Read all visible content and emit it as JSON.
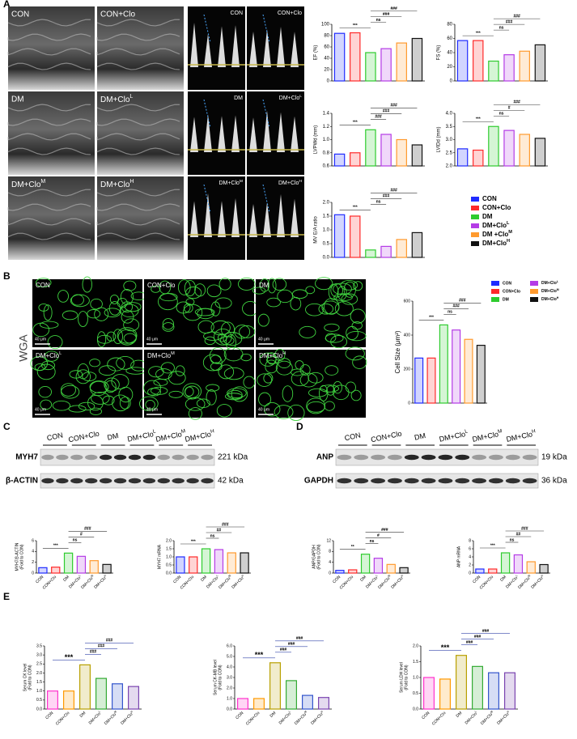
{
  "chart_data": [
    {
      "type": "bar",
      "ylabel": "EF (%)",
      "values": [
        84,
        85,
        50,
        57,
        67,
        75
      ],
      "colors": [
        "#1f2bff",
        "#ff2a2a",
        "#2ecc2e",
        "#b43be6",
        "#ff9a2e",
        "#111111"
      ],
      "ylim": [
        0,
        100
      ],
      "yticks": [
        0,
        20,
        40,
        60,
        80,
        100
      ],
      "annotations": [
        "***",
        "ns",
        "###",
        "###"
      ]
    },
    {
      "type": "bar",
      "ylabel": "FS (%)",
      "values": [
        57,
        57,
        28,
        37,
        42,
        51
      ],
      "colors": [
        "#1f2bff",
        "#ff2a2a",
        "#2ecc2e",
        "#b43be6",
        "#ff9a2e",
        "#111111"
      ],
      "ylim": [
        0,
        80
      ],
      "yticks": [
        0,
        20,
        40,
        60,
        80
      ],
      "annotations": [
        "***",
        "ns",
        "###",
        "###"
      ]
    },
    {
      "type": "bar",
      "ylabel": "LVPWd (mm)",
      "values": [
        0.78,
        0.8,
        1.15,
        1.08,
        1.0,
        0.92
      ],
      "colors": [
        "#1f2bff",
        "#ff2a2a",
        "#2ecc2e",
        "#b43be6",
        "#ff9a2e",
        "#111111"
      ],
      "ylim": [
        0.6,
        1.4
      ],
      "yticks": [
        0.6,
        0.8,
        {
          "value": 1,
          "label": "1.0"
        },
        1.2,
        1.4
      ],
      "annotations": [
        "***",
        "###",
        "###",
        "###"
      ]
    },
    {
      "type": "bar",
      "ylabel": "LVIDd (mm)",
      "values": [
        2.65,
        2.6,
        3.5,
        3.35,
        3.2,
        3.05
      ],
      "colors": [
        "#1f2bff",
        "#ff2a2a",
        "#2ecc2e",
        "#b43be6",
        "#ff9a2e",
        "#111111"
      ],
      "ylim": [
        2,
        4
      ],
      "yticks": [
        {
          "value": 2,
          "label": "2.0"
        },
        2.5,
        {
          "value": 3,
          "label": "3.0"
        },
        3.5,
        {
          "value": 4,
          "label": "4.0"
        }
      ],
      "annotations": [
        "***",
        "ns",
        "#",
        "###"
      ]
    },
    {
      "type": "bar",
      "ylabel": "MV E/A ratio",
      "values": [
        1.55,
        1.5,
        0.27,
        0.4,
        0.65,
        0.9
      ],
      "colors": [
        "#1f2bff",
        "#ff2a2a",
        "#2ecc2e",
        "#b43be6",
        "#ff9a2e",
        "#111111"
      ],
      "ylim": [
        0,
        2
      ],
      "yticks": [
        {
          "value": 0,
          "label": "0.0"
        },
        0.5,
        {
          "value": 1,
          "label": "1.0"
        },
        1.5,
        {
          "value": 2,
          "label": "2.0"
        }
      ],
      "annotations": [
        "***",
        "ns",
        "###",
        "###"
      ]
    },
    {
      "type": "bar",
      "ylabel": "Cell Size (μm²)",
      "values": [
        265,
        265,
        460,
        430,
        375,
        340
      ],
      "colors": [
        "#1f2bff",
        "#ff2a2a",
        "#2ecc2e",
        "#b43be6",
        "#ff9a2e",
        "#111111"
      ],
      "ylim": [
        0,
        600
      ],
      "yticks": [
        0,
        200,
        400,
        600
      ],
      "annotations": [
        "***",
        "ns",
        "###",
        "###"
      ]
    },
    {
      "type": "bar",
      "ylabel": [
        "MYH7/β-ACTIN",
        "(Fold to CON)"
      ],
      "categories": [
        "CON",
        "CON+Clo",
        "DM",
        {
          "text": "DM+Clo",
          "sup": "L"
        },
        {
          "text": "DM+Clo",
          "sup": "M"
        },
        {
          "text": "DM+Clo",
          "sup": "H"
        }
      ],
      "values": [
        1.0,
        1.1,
        3.7,
        3.1,
        2.3,
        1.6
      ],
      "colors": [
        "#1f2bff",
        "#ff2a2a",
        "#2ecc2e",
        "#b43be6",
        "#ff9a2e",
        "#111111"
      ],
      "ylim": [
        0,
        6
      ],
      "yticks": [
        0,
        2,
        4,
        6
      ],
      "annotations": [
        "***",
        "ns",
        "#",
        "###"
      ]
    },
    {
      "type": "bar",
      "ylabel": "MYH7 mRNA",
      "categories": [
        "CON",
        "CON+Clo",
        "DM",
        {
          "text": "DM+Clo",
          "sup": "L"
        },
        {
          "text": "DM+Clo",
          "sup": "M"
        },
        {
          "text": "DM+Clo",
          "sup": "H"
        }
      ],
      "values": [
        1.0,
        1.0,
        1.5,
        1.45,
        1.25,
        1.25
      ],
      "colors": [
        "#1f2bff",
        "#ff2a2a",
        "#2ecc2e",
        "#b43be6",
        "#ff9a2e",
        "#111111"
      ],
      "ylim": [
        0,
        2
      ],
      "yticks": [
        {
          "value": 0,
          "label": "0.0"
        },
        0.5,
        {
          "value": 1,
          "label": "1.0"
        },
        1.5,
        {
          "value": 2,
          "label": "2.0"
        }
      ],
      "annotations": [
        "***",
        "ns",
        "##",
        "###"
      ]
    },
    {
      "type": "bar",
      "ylabel": [
        "ANP/GAPDH",
        "(Fold to CON)"
      ],
      "categories": [
        "CON",
        "CON+Clo",
        "DM",
        {
          "text": "DM+Clo",
          "sup": "L"
        },
        {
          "text": "DM+Clo",
          "sup": "M"
        },
        {
          "text": "DM+Clo",
          "sup": "H"
        }
      ],
      "values": [
        1.0,
        1.2,
        7.0,
        5.5,
        3.2,
        2.0
      ],
      "colors": [
        "#1f2bff",
        "#ff2a2a",
        "#2ecc2e",
        "#b43be6",
        "#ff9a2e",
        "#111111"
      ],
      "ylim": [
        0,
        12
      ],
      "yticks": [
        0,
        4,
        8,
        12
      ],
      "annotations": [
        "**",
        "ns",
        "#",
        "###"
      ]
    },
    {
      "type": "bar",
      "ylabel": "ANP mRNA",
      "categories": [
        "CON",
        "CON+Clo",
        "DM",
        {
          "text": "DM+Clo",
          "sup": "L"
        },
        {
          "text": "DM+Clo",
          "sup": "M"
        },
        {
          "text": "DM+Clo",
          "sup": "H"
        }
      ],
      "values": [
        1.0,
        1.0,
        5.0,
        4.5,
        2.8,
        2.1
      ],
      "colors": [
        "#1f2bff",
        "#ff2a2a",
        "#2ecc2e",
        "#b43be6",
        "#ff9a2e",
        "#111111"
      ],
      "ylim": [
        0,
        8
      ],
      "yticks": [
        0,
        2,
        4,
        6,
        8
      ],
      "annotations": [
        "***",
        "ns",
        "##",
        "###"
      ]
    },
    {
      "type": "bar",
      "ylabel": [
        "Serum CK level",
        "(Fold to CON)"
      ],
      "categories": [
        "CON",
        "CON+Clo",
        "DM",
        {
          "text": "DM+Clo",
          "sup": "L"
        },
        {
          "text": "DM+Clo",
          "sup": "M"
        },
        {
          "text": "DM+Clo",
          "sup": "H"
        }
      ],
      "values": [
        1.0,
        1.0,
        2.45,
        1.7,
        1.4,
        1.25
      ],
      "colors": [
        "#ff33cc",
        "#ff9900",
        "#b8a000",
        "#33aa33",
        "#3355cc",
        "#7a44b0"
      ],
      "ylim": [
        0,
        3.5
      ],
      "yticks": [
        {
          "value": 0,
          "label": "0.0"
        },
        0.5,
        {
          "value": 1,
          "label": "1.0"
        },
        1.5,
        {
          "value": 2,
          "label": "2.0"
        },
        2.5,
        {
          "value": 3,
          "label": "3.0"
        },
        3.5
      ],
      "annotations": [
        "***",
        "###",
        "###",
        "###"
      ]
    },
    {
      "type": "bar",
      "ylabel": [
        "Serum CK-MB level",
        "(Fold to CON)"
      ],
      "categories": [
        "CON",
        "CON+Clo",
        "DM",
        {
          "text": "DM+Clo",
          "sup": "L"
        },
        {
          "text": "DM+Clo",
          "sup": "M"
        },
        {
          "text": "DM+Clo",
          "sup": "H"
        }
      ],
      "values": [
        1.0,
        1.0,
        4.4,
        2.7,
        1.3,
        1.1
      ],
      "colors": [
        "#ff33cc",
        "#ff9900",
        "#b8a000",
        "#33aa33",
        "#3355cc",
        "#7a44b0"
      ],
      "ylim": [
        0,
        6
      ],
      "yticks": [
        {
          "value": 0,
          "label": "0.0"
        },
        {
          "value": 1,
          "label": "1.0"
        },
        {
          "value": 2,
          "label": "2.0"
        },
        {
          "value": 3,
          "label": "3.0"
        },
        {
          "value": 4,
          "label": "4.0"
        },
        {
          "value": 5,
          "label": "5.0"
        },
        {
          "value": 6,
          "label": "6.0"
        }
      ],
      "annotations": [
        "***",
        "###",
        "###",
        "###"
      ]
    },
    {
      "type": "bar",
      "ylabel": [
        "Serum LDH level",
        "(Fold to CON)"
      ],
      "categories": [
        "CON",
        "CON+Clo",
        "DM",
        {
          "text": "DM+Clo",
          "sup": "L"
        },
        {
          "text": "DM+Clo",
          "sup": "M"
        },
        {
          "text": "DM+Clo",
          "sup": "H"
        }
      ],
      "values": [
        1.0,
        0.95,
        1.7,
        1.35,
        1.15,
        1.15
      ],
      "colors": [
        "#ff33cc",
        "#ff9900",
        "#b8a000",
        "#33aa33",
        "#3355cc",
        "#7a44b0"
      ],
      "ylim": [
        0,
        2
      ],
      "yticks": [
        {
          "value": 0,
          "label": "0.0"
        },
        0.5,
        {
          "value": 1,
          "label": "1.0"
        },
        1.5,
        {
          "value": 2,
          "label": "2.0"
        }
      ],
      "annotations": [
        "***",
        "###",
        "###",
        "###"
      ]
    }
  ],
  "panels": {
    "letters": [
      "A",
      "B",
      "C",
      "D",
      "E"
    ],
    "mmode_labels": [
      "CON",
      "CON+Clo",
      "DM",
      {
        "text": "DM+Clo",
        "sup": "L"
      },
      {
        "text": "DM+Clo",
        "sup": "M"
      },
      {
        "text": "DM+Clo",
        "sup": "H"
      }
    ],
    "doppler_labels": [
      "CON",
      "CON+Clo",
      "DM",
      {
        "text": "DM+Clo",
        "sup": "L"
      },
      {
        "text": "DM+Clo",
        "sup": "M"
      },
      {
        "text": "DM+Clo",
        "sup": "H"
      }
    ],
    "legend_a": [
      "CON",
      "CON+Clo",
      "DM",
      {
        "text": "DM+Clo",
        "sup": "L"
      },
      {
        "text": "DM +Clo",
        "sup": "M"
      },
      {
        "text": "DM+Clo",
        "sup": "H"
      }
    ],
    "wga_title": "WGA",
    "wga_labels": [
      "CON",
      "CON+Clo",
      "DM",
      {
        "text": "DM+Clo",
        "sup": "L"
      },
      {
        "text": "DM+Clo",
        "sup": "M"
      },
      {
        "text": "DM+Clo",
        "sup": "H"
      }
    ],
    "scale_bar": "40 μm",
    "legend_b": [
      "CON",
      "CON+Clo",
      "DM",
      {
        "text": "DM+Clo",
        "sup": "L"
      },
      {
        "text": "DM+Clo",
        "sup": "M"
      },
      {
        "text": "DM+Clo",
        "sup": "H"
      }
    ],
    "blot_c": {
      "groups": [
        "CON",
        "CON+Clo",
        "DM",
        {
          "text": "DM+Clo",
          "sup": "L"
        },
        {
          "text": "DM+Clo",
          "sup": "M"
        },
        {
          "text": "DM+Clo",
          "sup": "H"
        }
      ],
      "rows": [
        "MYH7",
        "β-ACTIN"
      ],
      "sizes": [
        "221 kDa",
        "42 kDa"
      ]
    },
    "blot_d": {
      "groups": [
        "CON",
        "CON+Clo",
        "DM",
        {
          "text": "DM+Clo",
          "sup": "L"
        },
        {
          "text": "DM+Clo",
          "sup": "M"
        },
        {
          "text": "DM+Clo",
          "sup": "H"
        }
      ],
      "rows": [
        "ANP",
        "GAPDH"
      ],
      "sizes": [
        "19 kDa",
        "36 kDa"
      ]
    }
  }
}
